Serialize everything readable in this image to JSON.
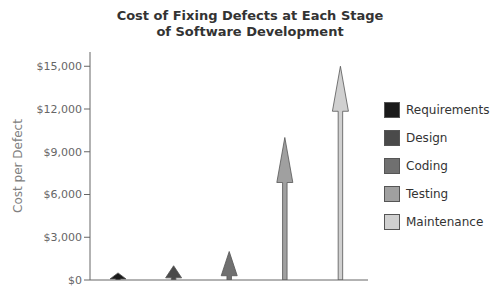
{
  "chart_data": {
    "type": "bar",
    "title": "Cost of Fixing Defects at Each Stage\nof Software Development",
    "ylabel": "Cost per Defect",
    "categories": [
      "Requirements",
      "Design",
      "Coding",
      "Testing",
      "Maintenance"
    ],
    "values": [
      500,
      1000,
      2000,
      10000,
      15000
    ],
    "colors": [
      "#1a1a1a",
      "#4a4a4a",
      "#707070",
      "#a0a0a0",
      "#d0d0d0"
    ],
    "ylim": [
      0,
      16000
    ],
    "yticks": [
      {
        "value": 0,
        "label": "$0"
      },
      {
        "value": 3000,
        "label": "$3,000"
      },
      {
        "value": 6000,
        "label": "$6,000"
      },
      {
        "value": 9000,
        "label": "$9,000"
      },
      {
        "value": 12000,
        "label": "$12,000"
      },
      {
        "value": 15000,
        "label": "$15,000"
      }
    ],
    "legend": "right",
    "tick_labels": "y",
    "grid": false
  }
}
